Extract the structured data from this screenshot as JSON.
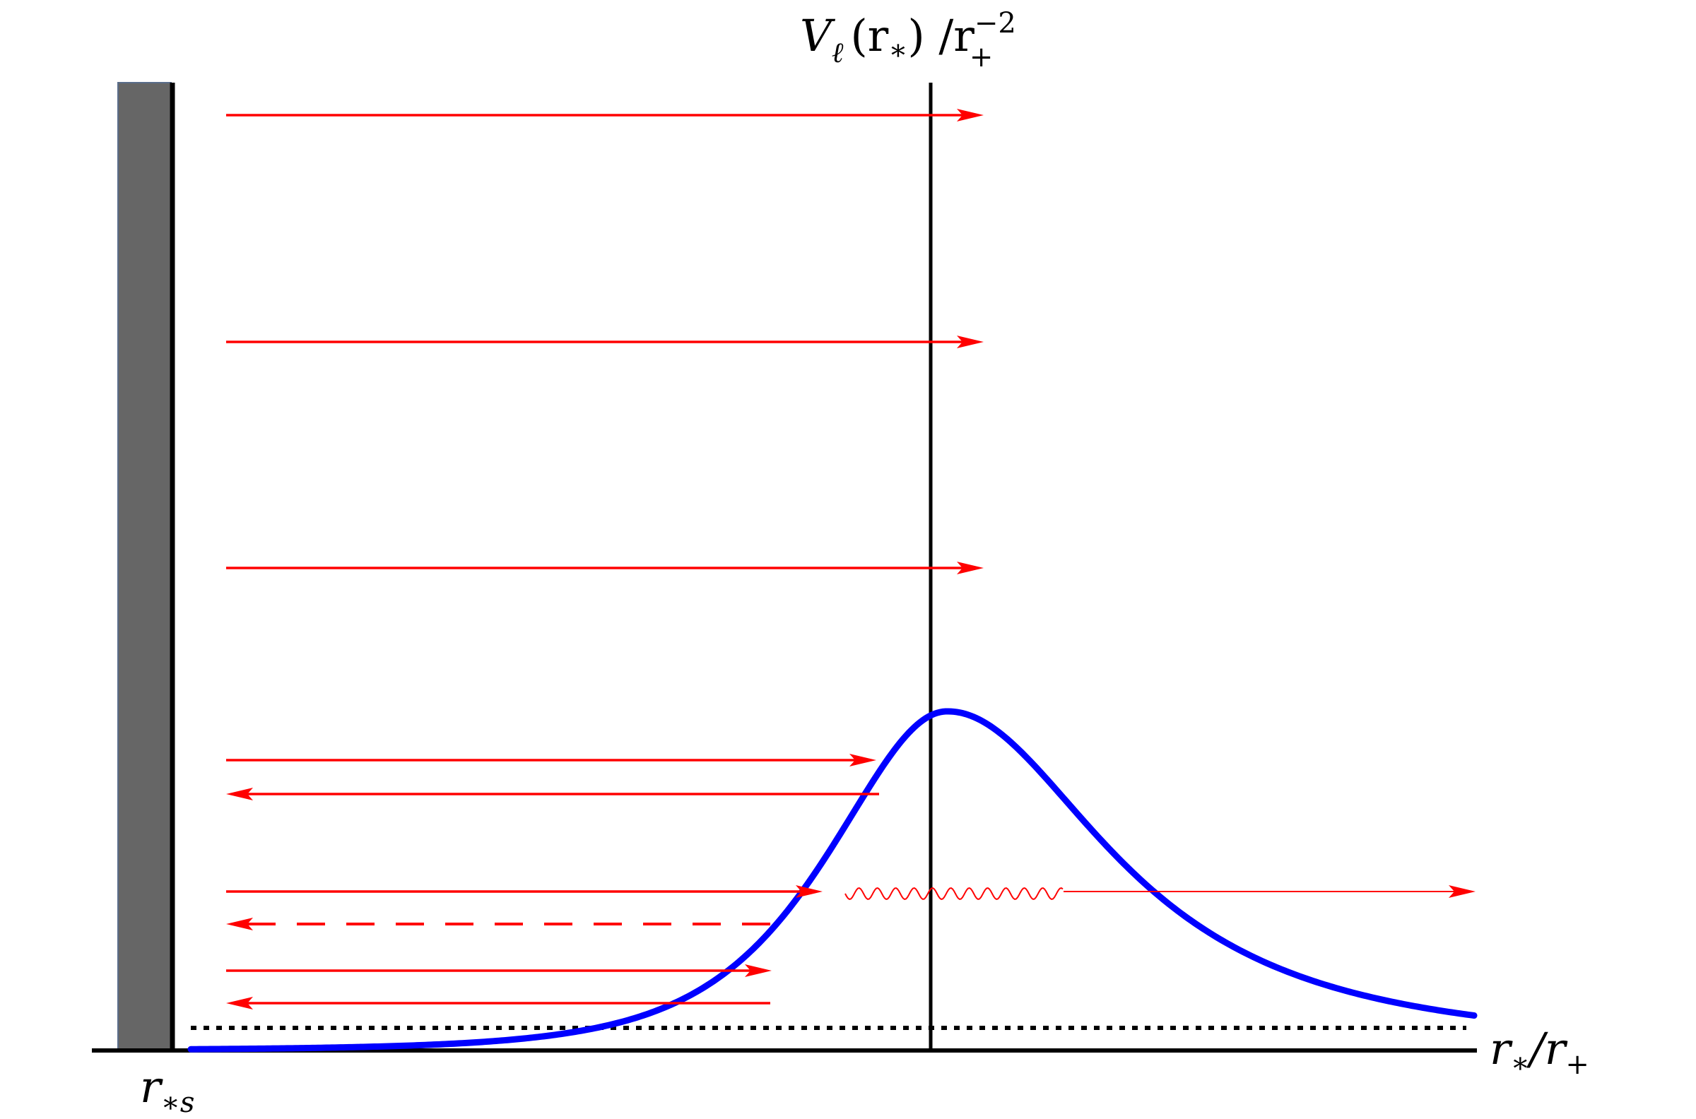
{
  "labels": {
    "y_axis": {
      "base": "V",
      "sub": "ℓ",
      "args": "(r",
      "args_sub": "∗",
      "close": ") /r",
      "sup": "−2",
      "den_sub": "+"
    },
    "x_axis": {
      "base": "r",
      "sub": "∗",
      "slash": "/r",
      "den_sub": "+"
    },
    "wall": {
      "base": "r",
      "sub": "∗s"
    }
  },
  "colors": {
    "potential": "#0000ff",
    "waves": "#ff0000",
    "wall_fill": "#666666",
    "axis": "#000000"
  },
  "icons": {
    "wall": "reflecting-wall",
    "potential": "potential-barrier-curve",
    "tunneling": "wavy-tunneling-line"
  }
}
